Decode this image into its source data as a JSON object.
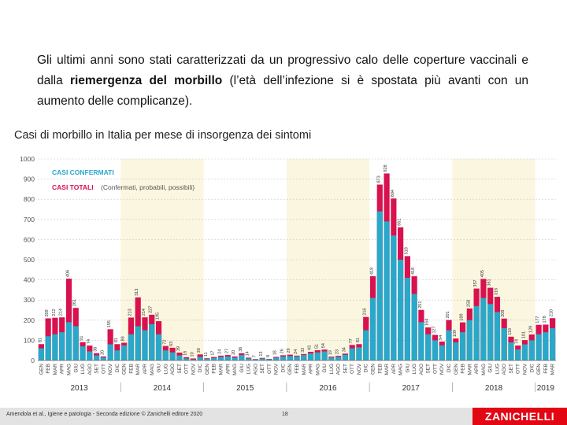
{
  "intro": {
    "part1": "Gli ultimi anni sono stati caratterizzati da un progressivo calo delle coperture vaccinali e dalla ",
    "bold": "riemergenza del morbillo",
    "part2": " (l’età dell’infezione si è spostata più avanti con un aumento delle complicanze)."
  },
  "subtitle": "Casi di morbillo in Italia per mese di insorgenza dei sintomi",
  "chart_data": {
    "type": "bar",
    "title": "Casi di morbillo in Italia per mese di insorgenza dei sintomi",
    "legend": {
      "confirmed": "CASI CONFERMATI",
      "total": "CASI TOTALI",
      "total_note": "(Confermati, probabili, possibili)"
    },
    "colors": {
      "confirmed": "#2aa8c9",
      "total": "#d8124e",
      "band": "#fbf6e0"
    },
    "ylim": [
      0,
      1000
    ],
    "yticks": [
      "0",
      "100",
      "200",
      "300",
      "400",
      "500",
      "600",
      "700",
      "800",
      "900",
      "1000"
    ],
    "years": [
      "2013",
      "2014",
      "2015",
      "2016",
      "2017",
      "2018",
      "2019"
    ],
    "months": [
      "GEN",
      "FEB",
      "MAR",
      "APR",
      "MAG",
      "GIU",
      "LUG",
      "AGO",
      "SET",
      "OTT",
      "NOV",
      "DIC"
    ],
    "tail_months": [
      "GEN",
      "FEB",
      "MAR"
    ],
    "categories": [
      "GEN 2013",
      "FEB 2013",
      "MAR 2013",
      "APR 2013",
      "MAG 2013",
      "GIU 2013",
      "LUG 2013",
      "AGO 2013",
      "SET 2013",
      "OTT 2013",
      "NOV 2013",
      "DIC 2013",
      "GEN 2014",
      "FEB 2014",
      "MAR 2014",
      "APR 2014",
      "MAG 2014",
      "GIU 2014",
      "LUG 2014",
      "AGO 2014",
      "SET 2014",
      "OTT 2014",
      "NOV 2014",
      "DIC 2014",
      "GEN 2015",
      "FEB 2015",
      "MAR 2015",
      "APR 2015",
      "MAG 2015",
      "GIU 2015",
      "LUG 2015",
      "AGO 2015",
      "SET 2015",
      "OTT 2015",
      "NOV 2015",
      "DIC 2015",
      "GEN 2016",
      "FEB 2016",
      "MAR 2016",
      "APR 2016",
      "MAG 2016",
      "GIU 2016",
      "LUG 2016",
      "AGO 2016",
      "SET 2016",
      "OTT 2016",
      "NOV 2016",
      "DIC 2016",
      "GEN 2017",
      "FEB 2017",
      "MAR 2017",
      "APR 2017",
      "MAG 2017",
      "GIU 2017",
      "LUG 2017",
      "AGO 2017",
      "SET 2017",
      "OTT 2017",
      "NOV 2017",
      "DIC 2017",
      "GEN 2018",
      "FEB 2018",
      "MAR 2018",
      "APR 2018",
      "MAG 2018",
      "GIU 2018",
      "LUG 2018",
      "AGO 2018",
      "SET 2018",
      "OTT 2018",
      "NOV 2018",
      "DIC 2018",
      "GEN 2019",
      "FEB 2019",
      "MAR 2019"
    ],
    "series": [
      {
        "name": "CASI TOTALI",
        "values": [
          81,
          209,
          212,
          214,
          406,
          261,
          91,
          74,
          36,
          20,
          155,
          81,
          88,
          213,
          313,
          214,
          227,
          195,
          72,
          63,
          39,
          16,
          10,
          30,
          11,
          17,
          24,
          27,
          20,
          36,
          14,
          7,
          13,
          8,
          18,
          26,
          29,
          24,
          32,
          43,
          51,
          54,
          19,
          23,
          34,
          77,
          81,
          216,
          418,
          873,
          928,
          804,
          661,
          518,
          418,
          251,
          164,
          127,
          94,
          201,
          109,
          189,
          258,
          357,
          405,
          361,
          316,
          208,
          118,
          74,
          101,
          129,
          177,
          178,
          210
        ]
      },
      {
        "name": "CASI CONFERMATI",
        "values": [
          60,
          120,
          130,
          140,
          190,
          170,
          70,
          45,
          25,
          15,
          80,
          50,
          75,
          130,
          170,
          150,
          180,
          130,
          50,
          40,
          25,
          10,
          5,
          18,
          8,
          12,
          18,
          20,
          14,
          27,
          10,
          5,
          10,
          6,
          14,
          20,
          22,
          20,
          27,
          35,
          40,
          45,
          15,
          18,
          28,
          60,
          65,
          150,
          310,
          740,
          690,
          620,
          500,
          410,
          330,
          190,
          130,
          100,
          75,
          150,
          90,
          140,
          200,
          270,
          310,
          280,
          240,
          160,
          90,
          55,
          80,
          100,
          130,
          140,
          160
        ]
      }
    ],
    "annotated_values": [
      "81",
      "209",
      "212",
      "214",
      "406",
      "261",
      "91",
      "74",
      "36",
      "20",
      "155",
      "81",
      "88",
      "213",
      "313",
      "214",
      "227",
      "195",
      "72",
      "63",
      "39",
      "16",
      "10",
      "30",
      "11",
      "17",
      "24",
      "27",
      "20",
      "36",
      "14",
      "7",
      "13",
      "8",
      "18",
      "26",
      "29",
      "24",
      "32",
      "43",
      "51",
      "54",
      "19",
      "23",
      "34",
      "77",
      "81",
      "216",
      "418",
      "873",
      "928",
      "804",
      "661",
      "518",
      "418",
      "251",
      "164",
      "127",
      "94",
      "201",
      "109",
      "189",
      "258",
      "357",
      "405",
      "361",
      "316",
      "208",
      "118",
      "74",
      "101",
      "129",
      "177",
      "178",
      "210"
    ]
  },
  "footer": {
    "citation": "Amendola et al., Igiene e patologia - Seconda edizione © Zanichelli editore 2020",
    "page": "18",
    "publisher": "ZANICHELLI"
  }
}
